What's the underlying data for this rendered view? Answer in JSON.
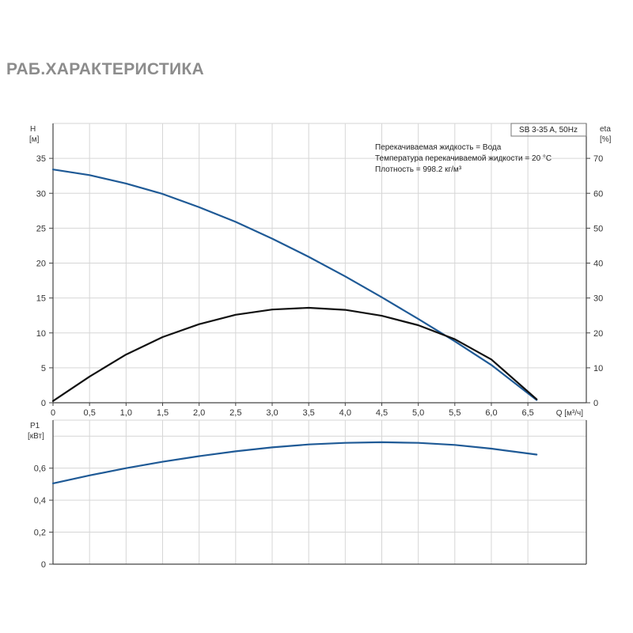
{
  "page": {
    "title": "РАБ.ХАРАКТЕРИСТИКА"
  },
  "chart_data": [
    {
      "type": "line",
      "product_label": "SB 3-35 A, 50Hz",
      "info_lines": [
        "Перекачиваемая жидкость = Вода",
        "Температура перекачиваемой жидкости = 20 °C",
        "Плотность = 998.2 кг/м³"
      ],
      "xlabel": "Q [м³/ч]",
      "ylabel_left": [
        "H",
        "[м]"
      ],
      "ylabel_right": [
        "eta",
        "[%]"
      ],
      "xlim": [
        0,
        7.3
      ],
      "ylim_left": [
        0,
        40
      ],
      "ylim_right": [
        0,
        80
      ],
      "x_ticks": [
        "0",
        "0,5",
        "1,0",
        "1,5",
        "2,0",
        "2,5",
        "3,0",
        "3,5",
        "4,0",
        "4,5",
        "5,0",
        "5,5",
        "6,0",
        "6,5"
      ],
      "y_left_ticks": [
        "0",
        "5",
        "10",
        "15",
        "20",
        "25",
        "30",
        "35"
      ],
      "y_right_ticks": [
        "0",
        "10",
        "20",
        "30",
        "40",
        "50",
        "60",
        "70"
      ],
      "grid": true,
      "series": [
        {
          "color": "#1f5a96",
          "axis": "left",
          "x": [
            0,
            0.5,
            1.0,
            1.5,
            2.0,
            2.5,
            3.0,
            3.5,
            4.0,
            4.5,
            5.0,
            5.5,
            6.0,
            6.62
          ],
          "values": [
            33.4,
            32.6,
            31.4,
            29.9,
            28.0,
            25.9,
            23.5,
            20.9,
            18.1,
            15.1,
            12.0,
            8.8,
            5.4,
            0.4
          ]
        },
        {
          "color": "#111111",
          "axis": "right",
          "x": [
            0,
            0.5,
            1.0,
            1.5,
            2.0,
            2.5,
            3.0,
            3.5,
            4.0,
            4.5,
            5.0,
            5.5,
            6.0,
            6.62
          ],
          "values": [
            0.5,
            7.5,
            13.8,
            18.8,
            22.5,
            25.2,
            26.7,
            27.2,
            26.6,
            24.9,
            22.2,
            18.2,
            12.4,
            1.0
          ]
        }
      ]
    },
    {
      "type": "line",
      "ylabel": [
        "P1",
        "[кВт]"
      ],
      "xlim": [
        0,
        7.3
      ],
      "ylim": [
        0,
        0.9
      ],
      "y_ticks": [
        "0",
        "0,2",
        "0,4",
        "0,6"
      ],
      "grid": true,
      "series": [
        {
          "color": "#1f5a96",
          "x": [
            0,
            0.5,
            1.0,
            1.5,
            2.0,
            2.5,
            3.0,
            3.5,
            4.0,
            4.5,
            5.0,
            5.5,
            6.0,
            6.62
          ],
          "values": [
            0.505,
            0.555,
            0.6,
            0.64,
            0.675,
            0.705,
            0.73,
            0.748,
            0.758,
            0.762,
            0.758,
            0.745,
            0.722,
            0.685
          ]
        }
      ]
    }
  ]
}
